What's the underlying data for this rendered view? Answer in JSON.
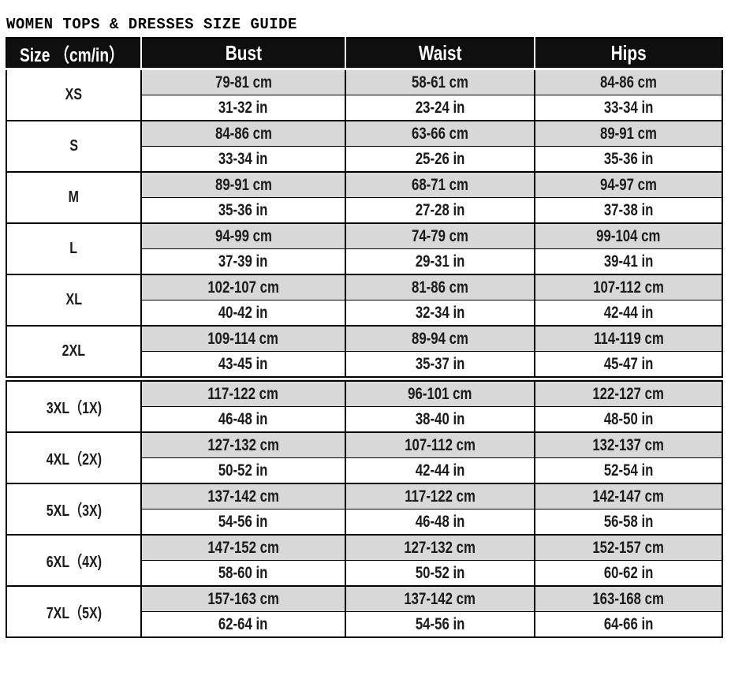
{
  "page": {
    "title": "WOMEN TOPS & DRESSES SIZE GUIDE"
  },
  "colors": {
    "header_bg": "#0f0f0f",
    "header_text": "#ffffff",
    "alt_row_bg": "#d8d8d8",
    "border": "#000000",
    "body_text": "#1b1b1b"
  },
  "table": {
    "columns": [
      "Size （cm/in）",
      "Bust",
      "Waist",
      "Hips"
    ],
    "rows": [
      {
        "size": "XS",
        "cm": {
          "bust": "79-81 cm",
          "waist": "58-61 cm",
          "hips": "84-86 cm"
        },
        "in": {
          "bust": "31-32 in",
          "waist": "23-24 in",
          "hips": "33-34 in"
        }
      },
      {
        "size": "S",
        "cm": {
          "bust": "84-86 cm",
          "waist": "63-66 cm",
          "hips": "89-91 cm"
        },
        "in": {
          "bust": "33-34 in",
          "waist": "25-26 in",
          "hips": "35-36 in"
        }
      },
      {
        "size": "M",
        "cm": {
          "bust": "89-91 cm",
          "waist": "68-71 cm",
          "hips": "94-97 cm"
        },
        "in": {
          "bust": "35-36 in",
          "waist": "27-28 in",
          "hips": "37-38 in"
        }
      },
      {
        "size": "L",
        "cm": {
          "bust": "94-99 cm",
          "waist": "74-79 cm",
          "hips": "99-104 cm"
        },
        "in": {
          "bust": "37-39 in",
          "waist": "29-31 in",
          "hips": "39-41 in"
        }
      },
      {
        "size": "XL",
        "cm": {
          "bust": "102-107 cm",
          "waist": "81-86 cm",
          "hips": "107-112 cm"
        },
        "in": {
          "bust": "40-42 in",
          "waist": "32-34 in",
          "hips": "42-44 in"
        }
      },
      {
        "size": "2XL",
        "cm": {
          "bust": "109-114 cm",
          "waist": "89-94 cm",
          "hips": "114-119 cm"
        },
        "in": {
          "bust": "43-45 in",
          "waist": "35-37 in",
          "hips": "45-47 in"
        }
      },
      {
        "size": "3XL（1X)",
        "divider_before": true,
        "cm": {
          "bust": "117-122 cm",
          "waist": "96-101 cm",
          "hips": "122-127 cm"
        },
        "in": {
          "bust": "46-48 in",
          "waist": "38-40 in",
          "hips": "48-50 in"
        }
      },
      {
        "size": "4XL（2X)",
        "cm": {
          "bust": "127-132 cm",
          "waist": "107-112 cm",
          "hips": "132-137 cm"
        },
        "in": {
          "bust": "50-52 in",
          "waist": "42-44 in",
          "hips": "52-54 in"
        }
      },
      {
        "size": "5XL（3X)",
        "cm": {
          "bust": "137-142 cm",
          "waist": "117-122 cm",
          "hips": "142-147 cm"
        },
        "in": {
          "bust": "54-56 in",
          "waist": "46-48 in",
          "hips": "56-58 in"
        }
      },
      {
        "size": "6XL（4X)",
        "cm": {
          "bust": "147-152 cm",
          "waist": "127-132 cm",
          "hips": "152-157 cm"
        },
        "in": {
          "bust": "58-60 in",
          "waist": "50-52 in",
          "hips": "60-62 in"
        }
      },
      {
        "size": "7XL（5X)",
        "cm": {
          "bust": "157-163 cm",
          "waist": "137-142 cm",
          "hips": "163-168 cm"
        },
        "in": {
          "bust": "62-64 in",
          "waist": "54-56 in",
          "hips": "64-66 in"
        }
      }
    ]
  }
}
